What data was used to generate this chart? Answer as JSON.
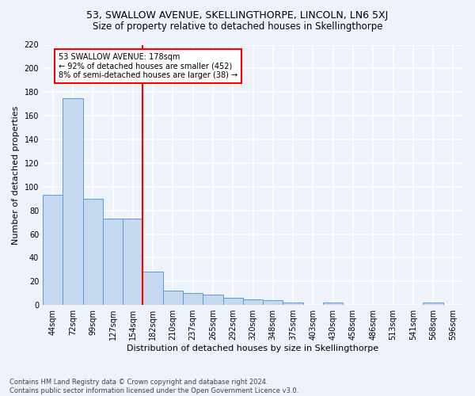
{
  "title": "53, SWALLOW AVENUE, SKELLINGTHORPE, LINCOLN, LN6 5XJ",
  "subtitle": "Size of property relative to detached houses in Skellingthorpe",
  "xlabel": "Distribution of detached houses by size in Skellingthorpe",
  "ylabel": "Number of detached properties",
  "categories": [
    "44sqm",
    "72sqm",
    "99sqm",
    "127sqm",
    "154sqm",
    "182sqm",
    "210sqm",
    "237sqm",
    "265sqm",
    "292sqm",
    "320sqm",
    "348sqm",
    "375sqm",
    "403sqm",
    "430sqm",
    "458sqm",
    "486sqm",
    "513sqm",
    "541sqm",
    "568sqm",
    "596sqm"
  ],
  "values": [
    93,
    175,
    90,
    73,
    73,
    28,
    12,
    10,
    9,
    6,
    5,
    4,
    2,
    0,
    2,
    0,
    0,
    0,
    0,
    2,
    0
  ],
  "bar_color": "#c5d8f0",
  "bar_edge_color": "#5b9bd5",
  "bar_edge_width": 0.7,
  "vline_color": "red",
  "vline_x_index": 5,
  "annotation_text": "53 SWALLOW AVENUE: 178sqm\n← 92% of detached houses are smaller (452)\n8% of semi-detached houses are larger (38) →",
  "annotation_box_color": "white",
  "annotation_box_edge_color": "red",
  "ylim": [
    0,
    220
  ],
  "yticks": [
    0,
    20,
    40,
    60,
    80,
    100,
    120,
    140,
    160,
    180,
    200,
    220
  ],
  "footnote": "Contains HM Land Registry data © Crown copyright and database right 2024.\nContains public sector information licensed under the Open Government Licence v3.0.",
  "background_color": "#eef2fa",
  "grid_color": "white",
  "title_fontsize": 9,
  "subtitle_fontsize": 8.5,
  "axis_label_fontsize": 8,
  "tick_fontsize": 7,
  "annotation_fontsize": 7,
  "footnote_fontsize": 6
}
